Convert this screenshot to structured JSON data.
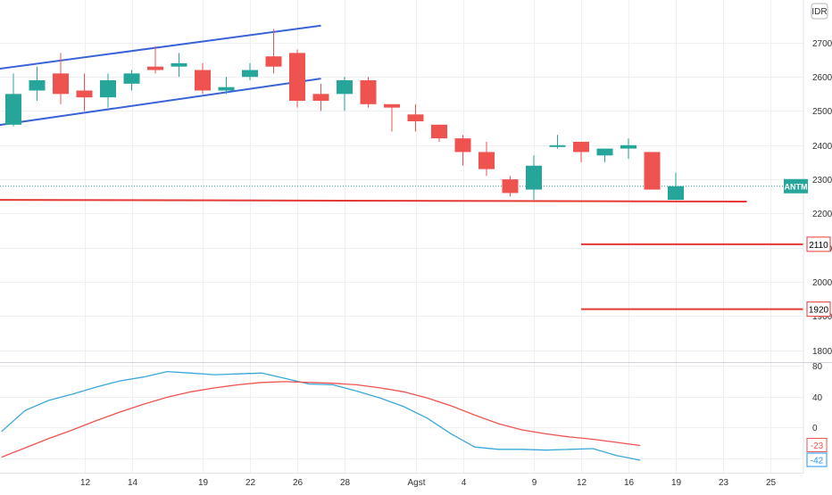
{
  "currency": "IDR",
  "symbol_tag": "ANTM",
  "level_tags": [
    "2110",
    "1920"
  ],
  "colors": {
    "up": "#26a69a",
    "down": "#ef5350",
    "channel": "#3a63d8",
    "level": "#e53935",
    "osc_fast": "#3aa7d9",
    "osc_slow": "#ef5350",
    "grid": "#eef0f3",
    "axis_text": "#333333",
    "last_price": "#26a69a",
    "tag_fast": "#2196f3"
  },
  "chart_data": [
    {
      "type": "candlestick",
      "x_ticks": [
        "12",
        "14",
        "19",
        "22",
        "26",
        "28",
        "Agst",
        "4",
        "9",
        "12",
        "16",
        "19",
        "23",
        "25"
      ],
      "x_tick_index": [
        3,
        5,
        8,
        10,
        12,
        14,
        17,
        19,
        22,
        24,
        26,
        28,
        30,
        32
      ],
      "y_ticks": [
        1800,
        1900,
        2000,
        2100,
        2200,
        2300,
        2400,
        2500,
        2600,
        2700
      ],
      "ylim": [
        1765,
        2825
      ],
      "candles": [
        {
          "open": 2460,
          "high": 2610,
          "low": 2455,
          "close": 2550
        },
        {
          "open": 2560,
          "high": 2630,
          "low": 2530,
          "close": 2590
        },
        {
          "open": 2610,
          "high": 2670,
          "low": 2520,
          "close": 2550
        },
        {
          "open": 2560,
          "high": 2610,
          "low": 2500,
          "close": 2540
        },
        {
          "open": 2540,
          "high": 2610,
          "low": 2510,
          "close": 2590
        },
        {
          "open": 2580,
          "high": 2620,
          "low": 2560,
          "close": 2610
        },
        {
          "open": 2630,
          "high": 2690,
          "low": 2610,
          "close": 2620
        },
        {
          "open": 2630,
          "high": 2670,
          "low": 2600,
          "close": 2640
        },
        {
          "open": 2620,
          "high": 2640,
          "low": 2550,
          "close": 2560
        },
        {
          "open": 2560,
          "high": 2600,
          "low": 2550,
          "close": 2570
        },
        {
          "open": 2600,
          "high": 2640,
          "low": 2590,
          "close": 2620
        },
        {
          "open": 2660,
          "high": 2740,
          "low": 2610,
          "close": 2630
        },
        {
          "open": 2670,
          "high": 2680,
          "low": 2510,
          "close": 2530
        },
        {
          "open": 2550,
          "high": 2580,
          "low": 2500,
          "close": 2530
        },
        {
          "open": 2550,
          "high": 2600,
          "low": 2500,
          "close": 2590
        },
        {
          "open": 2590,
          "high": 2600,
          "low": 2510,
          "close": 2520
        },
        {
          "open": 2520,
          "high": 2520,
          "low": 2440,
          "close": 2510
        },
        {
          "open": 2490,
          "high": 2520,
          "low": 2440,
          "close": 2470
        },
        {
          "open": 2460,
          "high": 2460,
          "low": 2410,
          "close": 2420
        },
        {
          "open": 2420,
          "high": 2430,
          "low": 2340,
          "close": 2380
        },
        {
          "open": 2380,
          "high": 2410,
          "low": 2310,
          "close": 2330
        },
        {
          "open": 2300,
          "high": 2310,
          "low": 2250,
          "close": 2260
        },
        {
          "open": 2270,
          "high": 2370,
          "low": 2240,
          "close": 2340
        },
        {
          "open": 2400,
          "high": 2430,
          "low": 2390,
          "close": 2400
        },
        {
          "open": 2410,
          "high": 2410,
          "low": 2350,
          "close": 2380
        },
        {
          "open": 2370,
          "high": 2390,
          "low": 2350,
          "close": 2390
        },
        {
          "open": 2390,
          "high": 2420,
          "low": 2360,
          "close": 2400
        },
        {
          "open": 2380,
          "high": 2380,
          "low": 2270,
          "close": 2270
        },
        {
          "open": 2240,
          "high": 2320,
          "low": 2240,
          "close": 2280
        }
      ],
      "channel_upper": [
        [
          -1,
          2620
        ],
        [
          13,
          2750
        ]
      ],
      "channel_lower": [
        [
          -1,
          2455
        ],
        [
          13,
          2595
        ]
      ],
      "support_level": [
        [
          -1,
          2240
        ],
        [
          31,
          2235
        ]
      ],
      "levels": [
        {
          "value": 2110,
          "from_index": 24
        },
        {
          "value": 1920,
          "from_index": 24
        }
      ],
      "last_price": 2280
    },
    {
      "type": "line",
      "y_ticks": [
        80,
        40,
        0,
        -40
      ],
      "ylim": [
        -58,
        83
      ],
      "last_values": [
        "-23",
        "-42"
      ],
      "series": [
        {
          "values": [
            -5,
            22,
            35,
            43,
            52,
            60,
            65,
            72,
            70,
            68,
            69,
            70,
            63,
            56,
            55,
            47,
            38,
            27,
            12,
            -8,
            -25,
            -28,
            -28,
            -29,
            -28,
            -27,
            -36,
            -42
          ]
        },
        {
          "values": [
            -38,
            -26,
            -14,
            -3,
            9,
            20,
            30,
            39,
            46,
            51,
            55,
            58,
            59,
            58,
            57,
            55,
            51,
            46,
            38,
            28,
            16,
            5,
            -3,
            -8,
            -12,
            -15,
            -19,
            -23
          ]
        }
      ]
    }
  ]
}
